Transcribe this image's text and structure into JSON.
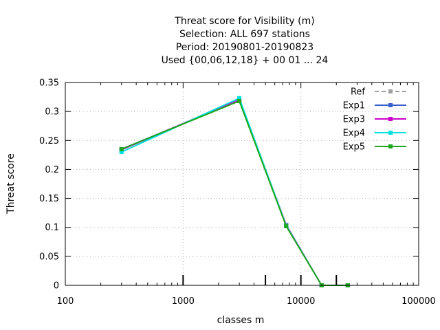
{
  "chart_data": {
    "type": "line",
    "title_lines": [
      "Threat score  for Visibility (m)",
      "Selection: ALL    697 stations",
      "Period: 20190801-20190823",
      "Used {00,06,12,18} + 00 01 ... 24"
    ],
    "xlabel": "classes m",
    "ylabel": "Threat score",
    "x_scale": "log",
    "xlim": [
      100,
      100000
    ],
    "ylim": [
      0,
      0.35
    ],
    "x_ticks": [
      100,
      1000,
      10000,
      100000
    ],
    "x_tick_labels": [
      "100",
      "1000",
      "10000",
      "100000"
    ],
    "y_ticks": [
      0,
      0.05,
      0.1,
      0.15,
      0.2,
      0.25,
      0.3,
      0.35
    ],
    "y_tick_labels": [
      "0",
      "0.05",
      "0.1",
      "0.15",
      "0.2",
      "0.25",
      "0.3",
      "0.35"
    ],
    "grid": true,
    "legend_position": "top-right",
    "class_markers_x": [
      1000,
      5000,
      10000,
      20000
    ],
    "x": [
      300,
      3000,
      7500,
      15000,
      25000
    ],
    "series": [
      {
        "name": "Ref",
        "color": "#a0a0a0",
        "dashed": true,
        "values": [
          0.234,
          0.321,
          0.104,
          0.0,
          0.0
        ]
      },
      {
        "name": "Exp1",
        "color": "#3b5fcf",
        "dashed": false,
        "values": [
          0.235,
          0.319,
          0.104,
          0.0,
          0.0
        ]
      },
      {
        "name": "Exp3",
        "color": "#cc00cc",
        "dashed": false,
        "values": [
          0.234,
          0.32,
          0.104,
          0.0,
          0.0
        ]
      },
      {
        "name": "Exp4",
        "color": "#00e0e0",
        "dashed": false,
        "values": [
          0.23,
          0.323,
          0.103,
          0.0,
          0.0
        ]
      },
      {
        "name": "Exp5",
        "color": "#1fa81f",
        "dashed": false,
        "values": [
          0.235,
          0.318,
          0.102,
          0.0,
          0.0
        ]
      }
    ]
  }
}
